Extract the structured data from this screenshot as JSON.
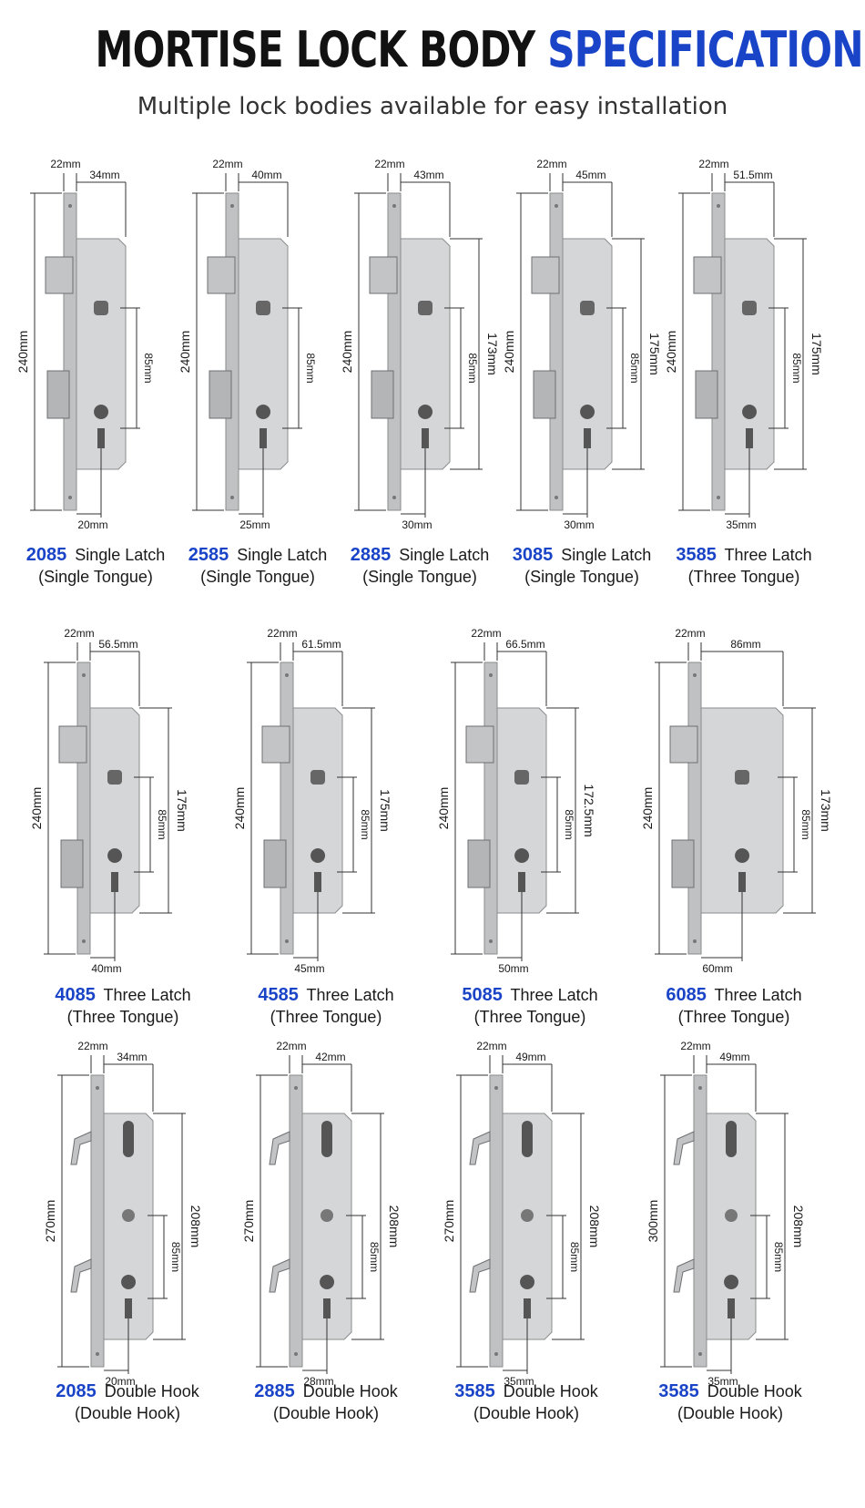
{
  "header": {
    "title_dark": "MORTISE LOCK BODY",
    "title_blue": "SPECIFICATIONS",
    "subtitle": "Multiple lock bodies available for easy installation"
  },
  "colors": {
    "accent": "#1a44c8",
    "text": "#1a1a1a",
    "metal": "#c9cbcd"
  },
  "rows": [
    [
      {
        "faceplate": "22mm",
        "backset_dim": "34mm",
        "height": "240mm",
        "center": "85mm",
        "side": "",
        "bottom": "20mm",
        "model": "2085",
        "type": "Single Latch",
        "tongue": "(Single Tongue)"
      },
      {
        "faceplate": "22mm",
        "backset_dim": "40mm",
        "height": "240mm",
        "center": "85mm",
        "side": "",
        "bottom": "25mm",
        "model": "2585",
        "type": "Single Latch",
        "tongue": "(Single Tongue)"
      },
      {
        "faceplate": "22mm",
        "backset_dim": "43mm",
        "height": "240mm",
        "center": "85mm",
        "side": "173mm",
        "bottom": "30mm",
        "model": "2885",
        "type": "Single Latch",
        "tongue": "(Single Tongue)"
      },
      {
        "faceplate": "22mm",
        "backset_dim": "45mm",
        "height": "240mm",
        "center": "85mm",
        "side": "175mm",
        "bottom": "30mm",
        "model": "3085",
        "type": "Single Latch",
        "tongue": "(Single Tongue)"
      },
      {
        "faceplate": "22mm",
        "backset_dim": "51.5mm",
        "height": "240mm",
        "center": "85mm",
        "side": "175mm",
        "bottom": "35mm",
        "model": "3585",
        "type": "Three Latch",
        "tongue": "(Three Tongue)"
      }
    ],
    [
      {
        "faceplate": "22mm",
        "backset_dim": "56.5mm",
        "height": "240mm",
        "center": "85mm",
        "side": "175mm",
        "bottom": "40mm",
        "model": "4085",
        "type": "Three Latch",
        "tongue": "(Three Tongue)"
      },
      {
        "faceplate": "22mm",
        "backset_dim": "61.5mm",
        "height": "240mm",
        "center": "85mm",
        "side": "175mm",
        "bottom": "45mm",
        "model": "4585",
        "type": "Three Latch",
        "tongue": "(Three Tongue)"
      },
      {
        "faceplate": "22mm",
        "backset_dim": "66.5mm",
        "height": "240mm",
        "center": "85mm",
        "side": "172.5mm",
        "bottom": "50mm",
        "model": "5085",
        "type": "Three Latch",
        "tongue": "(Three Tongue)"
      },
      {
        "faceplate": "22mm",
        "backset_dim": "86mm",
        "height": "240mm",
        "center": "85mm",
        "side": "173mm",
        "bottom": "60mm",
        "model": "6085",
        "type": "Three Latch",
        "tongue": "(Three Tongue)"
      }
    ],
    [
      {
        "faceplate": "22mm",
        "backset_dim": "34mm",
        "height": "270mm",
        "center": "85mm",
        "side": "208mm",
        "bottom": "20mm",
        "model": "2085",
        "type": "Double Hook",
        "tongue": "(Double Hook)"
      },
      {
        "faceplate": "22mm",
        "backset_dim": "42mm",
        "height": "270mm",
        "center": "85mm",
        "side": "208mm",
        "bottom": "28mm",
        "model": "2885",
        "type": "Double Hook",
        "tongue": "(Double Hook)"
      },
      {
        "faceplate": "22mm",
        "backset_dim": "49mm",
        "height": "270mm",
        "center": "85mm",
        "side": "208mm",
        "bottom": "35mm",
        "model": "3585",
        "type": "Double Hook",
        "tongue": "(Double Hook)"
      },
      {
        "faceplate": "22mm",
        "backset_dim": "49mm",
        "height": "300mm",
        "center": "85mm",
        "side": "208mm",
        "bottom": "35mm",
        "model": "3585",
        "type": "Double Hook",
        "tongue": "(Double Hook)"
      }
    ]
  ]
}
